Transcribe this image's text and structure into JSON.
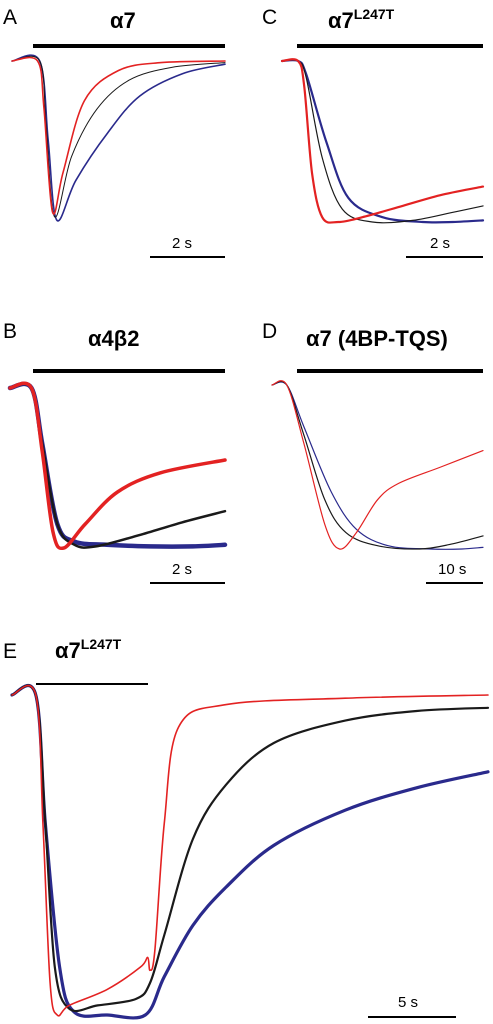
{
  "colors": {
    "red": "#e32222",
    "black": "#1a1a1a",
    "blue": "#2a2a8c"
  },
  "chart_data": [
    {
      "panel": "A",
      "type": "line",
      "title": "α7",
      "title_sup": "",
      "scale_bar_label": "2 s",
      "series": [
        {
          "color": "red",
          "points": [
            [
              0,
              0
            ],
            [
              0.12,
              0
            ],
            [
              0.15,
              -0.3
            ],
            [
              0.19,
              -0.95
            ],
            [
              0.24,
              -0.7
            ],
            [
              0.34,
              -0.25
            ],
            [
              0.5,
              -0.06
            ],
            [
              0.7,
              -0.01
            ],
            [
              1,
              0
            ]
          ]
        },
        {
          "color": "black",
          "points": [
            [
              0,
              0
            ],
            [
              0.13,
              0
            ],
            [
              0.16,
              -0.4
            ],
            [
              0.2,
              -0.98
            ],
            [
              0.28,
              -0.6
            ],
            [
              0.4,
              -0.3
            ],
            [
              0.55,
              -0.12
            ],
            [
              0.75,
              -0.04
            ],
            [
              1,
              -0.01
            ]
          ]
        },
        {
          "color": "blue",
          "points": [
            [
              0,
              0
            ],
            [
              0.13,
              0
            ],
            [
              0.17,
              -0.5
            ],
            [
              0.21,
              -1
            ],
            [
              0.3,
              -0.75
            ],
            [
              0.45,
              -0.45
            ],
            [
              0.6,
              -0.22
            ],
            [
              0.8,
              -0.08
            ],
            [
              1,
              -0.02
            ]
          ]
        }
      ]
    },
    {
      "panel": "C",
      "type": "line",
      "title": "α7",
      "title_sup": "L247T",
      "scale_bar_label": "2 s",
      "series": [
        {
          "color": "red",
          "points": [
            [
              0,
              0
            ],
            [
              0.08,
              0
            ],
            [
              0.11,
              -0.15
            ],
            [
              0.15,
              -0.7
            ],
            [
              0.2,
              -0.97
            ],
            [
              0.28,
              -1
            ],
            [
              0.4,
              -0.97
            ],
            [
              0.6,
              -0.9
            ],
            [
              0.8,
              -0.83
            ],
            [
              1,
              -0.78
            ]
          ]
        },
        {
          "color": "black",
          "points": [
            [
              0,
              0
            ],
            [
              0.08,
              0
            ],
            [
              0.12,
              -0.1
            ],
            [
              0.2,
              -0.6
            ],
            [
              0.3,
              -0.92
            ],
            [
              0.45,
              -1
            ],
            [
              0.65,
              -0.99
            ],
            [
              0.85,
              -0.94
            ],
            [
              1,
              -0.9
            ]
          ]
        },
        {
          "color": "blue",
          "points": [
            [
              0,
              0
            ],
            [
              0.08,
              0
            ],
            [
              0.12,
              -0.08
            ],
            [
              0.22,
              -0.5
            ],
            [
              0.33,
              -0.85
            ],
            [
              0.5,
              -0.97
            ],
            [
              0.7,
              -1
            ],
            [
              0.85,
              -1
            ],
            [
              1,
              -0.99
            ]
          ]
        }
      ]
    },
    {
      "panel": "B",
      "type": "line",
      "title": "α4β2",
      "title_sup": "",
      "scale_bar_label": "2 s",
      "series": [
        {
          "color": "red",
          "points": [
            [
              0,
              0
            ],
            [
              0.1,
              0
            ],
            [
              0.15,
              -0.4
            ],
            [
              0.2,
              -0.9
            ],
            [
              0.25,
              -1
            ],
            [
              0.35,
              -0.85
            ],
            [
              0.5,
              -0.65
            ],
            [
              0.7,
              -0.53
            ],
            [
              1,
              -0.45
            ]
          ]
        },
        {
          "color": "black",
          "points": [
            [
              0,
              0
            ],
            [
              0.1,
              0
            ],
            [
              0.15,
              -0.35
            ],
            [
              0.22,
              -0.85
            ],
            [
              0.3,
              -0.98
            ],
            [
              0.4,
              -0.99
            ],
            [
              0.6,
              -0.92
            ],
            [
              0.8,
              -0.84
            ],
            [
              1,
              -0.77
            ]
          ]
        },
        {
          "color": "blue",
          "points": [
            [
              0,
              0
            ],
            [
              0.1,
              0
            ],
            [
              0.15,
              -0.35
            ],
            [
              0.22,
              -0.85
            ],
            [
              0.3,
              -0.96
            ],
            [
              0.45,
              -0.98
            ],
            [
              0.65,
              -0.99
            ],
            [
              0.85,
              -0.99
            ],
            [
              1,
              -0.98
            ]
          ]
        }
      ]
    },
    {
      "panel": "D",
      "type": "line",
      "title": "α7 (4BP-TQS)",
      "title_sup": "",
      "scale_bar_label": "10 s",
      "series": [
        {
          "color": "red",
          "points": [
            [
              0,
              0
            ],
            [
              0.07,
              0
            ],
            [
              0.15,
              -0.35
            ],
            [
              0.25,
              -0.85
            ],
            [
              0.32,
              -1
            ],
            [
              0.4,
              -0.9
            ],
            [
              0.5,
              -0.7
            ],
            [
              0.6,
              -0.6
            ],
            [
              0.8,
              -0.5
            ],
            [
              1,
              -0.4
            ]
          ]
        },
        {
          "color": "black",
          "points": [
            [
              0,
              0
            ],
            [
              0.07,
              0
            ],
            [
              0.15,
              -0.3
            ],
            [
              0.25,
              -0.7
            ],
            [
              0.35,
              -0.9
            ],
            [
              0.5,
              -0.98
            ],
            [
              0.7,
              -1
            ],
            [
              0.85,
              -0.97
            ],
            [
              1,
              -0.92
            ]
          ]
        },
        {
          "color": "blue",
          "points": [
            [
              0,
              0
            ],
            [
              0.07,
              0
            ],
            [
              0.15,
              -0.25
            ],
            [
              0.28,
              -0.65
            ],
            [
              0.4,
              -0.88
            ],
            [
              0.55,
              -0.98
            ],
            [
              0.75,
              -1
            ],
            [
              0.9,
              -1
            ],
            [
              1,
              -0.99
            ]
          ]
        }
      ]
    },
    {
      "panel": "E",
      "type": "line",
      "title": "α7",
      "title_sup": "L247T",
      "scale_bar_label": "5 s",
      "series": [
        {
          "color": "red",
          "points": [
            [
              0,
              0
            ],
            [
              0.05,
              0
            ],
            [
              0.065,
              -0.4
            ],
            [
              0.08,
              -0.9
            ],
            [
              0.095,
              -1
            ],
            [
              0.12,
              -0.97
            ],
            [
              0.2,
              -0.92
            ],
            [
              0.27,
              -0.85
            ],
            [
              0.285,
              -0.82
            ],
            [
              0.29,
              -0.86
            ],
            [
              0.3,
              -0.8
            ],
            [
              0.32,
              -0.4
            ],
            [
              0.35,
              -0.1
            ],
            [
              0.45,
              -0.03
            ],
            [
              0.7,
              -0.01
            ],
            [
              1,
              0
            ]
          ]
        },
        {
          "color": "black",
          "points": [
            [
              0,
              0
            ],
            [
              0.05,
              0
            ],
            [
              0.07,
              -0.4
            ],
            [
              0.09,
              -0.85
            ],
            [
              0.12,
              -0.98
            ],
            [
              0.18,
              -0.97
            ],
            [
              0.26,
              -0.95
            ],
            [
              0.29,
              -0.9
            ],
            [
              0.32,
              -0.75
            ],
            [
              0.38,
              -0.45
            ],
            [
              0.45,
              -0.28
            ],
            [
              0.55,
              -0.15
            ],
            [
              0.7,
              -0.08
            ],
            [
              0.85,
              -0.05
            ],
            [
              1,
              -0.04
            ]
          ]
        },
        {
          "color": "blue",
          "points": [
            [
              0,
              0
            ],
            [
              0.05,
              0
            ],
            [
              0.07,
              -0.4
            ],
            [
              0.1,
              -0.85
            ],
            [
              0.13,
              -0.99
            ],
            [
              0.2,
              -1
            ],
            [
              0.28,
              -1
            ],
            [
              0.32,
              -0.88
            ],
            [
              0.38,
              -0.72
            ],
            [
              0.45,
              -0.6
            ],
            [
              0.55,
              -0.47
            ],
            [
              0.7,
              -0.36
            ],
            [
              0.85,
              -0.29
            ],
            [
              1,
              -0.24
            ]
          ]
        }
      ]
    }
  ]
}
